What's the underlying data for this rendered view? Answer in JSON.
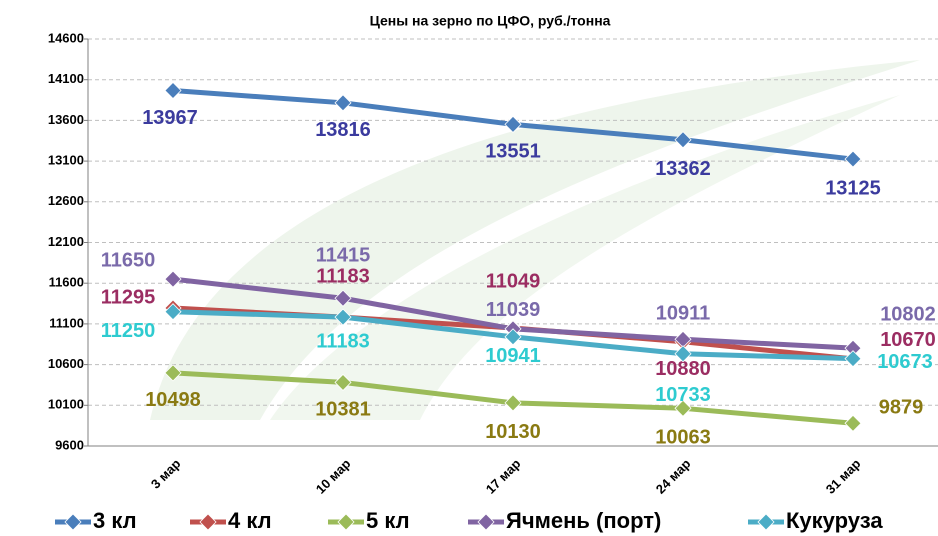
{
  "chart_data": {
    "type": "line",
    "title": "Цены на зерно по ЦФО, руб./тонна",
    "categories": [
      "3 мар",
      "10 мар",
      "17 мар",
      "24 мар",
      "31 мар"
    ],
    "series": [
      {
        "name": "3 кл",
        "color": "#4a7ebb",
        "label_color": "#3b3b9e",
        "values": [
          13967,
          13816,
          13551,
          13362,
          13125
        ]
      },
      {
        "name": "4 кл",
        "color": "#c0504d",
        "label_color": "#9b2d62",
        "values": [
          11295,
          11183,
          11049,
          10880,
          10670
        ]
      },
      {
        "name": "5 кл",
        "color": "#9bbb59",
        "label_color": "#8a7a12",
        "values": [
          10498,
          10381,
          10130,
          10063,
          9879
        ]
      },
      {
        "name": "Ячмень (порт)",
        "color": "#8064a2",
        "label_color": "#7a6aaa",
        "values": [
          11650,
          11415,
          11039,
          10911,
          10802
        ]
      },
      {
        "name": "Кукуруза",
        "color": "#4bacc6",
        "label_color": "#2ecbd0",
        "values": [
          11250,
          11183,
          10941,
          10733,
          10673
        ]
      }
    ],
    "ylim": [
      9600,
      14600
    ],
    "yticks": [
      9600,
      10100,
      10600,
      11100,
      11600,
      12100,
      12600,
      13100,
      13600,
      14100,
      14600
    ],
    "grid": true,
    "legend": "bottom"
  }
}
